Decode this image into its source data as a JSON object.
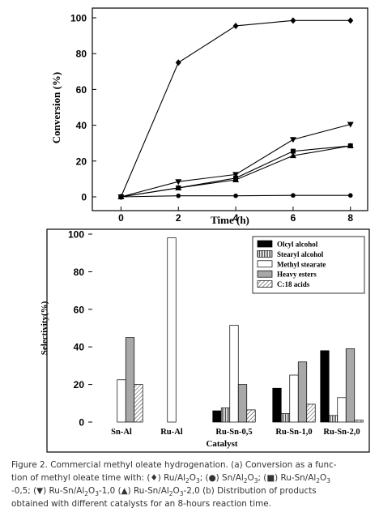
{
  "chart_data": [
    {
      "type": "line",
      "xlabel": "Time (h)",
      "ylabel": "Conversion (%)",
      "xlim": [
        -1,
        8.6
      ],
      "ylim": [
        0,
        100
      ],
      "x_ticks": [
        0,
        2,
        4,
        6,
        8
      ],
      "y_ticks": [
        0,
        20,
        40,
        60,
        80,
        100
      ],
      "x": [
        0,
        2,
        4,
        6,
        8
      ],
      "series": [
        {
          "marker": "diamond",
          "values": [
            0,
            75,
            95.5,
            98.5,
            98.5
          ]
        },
        {
          "marker": "circle",
          "values": [
            0,
            0.6,
            0.6,
            0.8,
            0.8
          ]
        },
        {
          "marker": "square",
          "values": [
            0,
            5,
            10.5,
            25.5,
            28.5
          ]
        },
        {
          "marker": "triangle-down",
          "values": [
            0,
            8.5,
            12.5,
            32,
            40.5
          ]
        },
        {
          "marker": "triangle-up",
          "values": [
            0,
            5,
            9.5,
            23,
            28.5
          ]
        }
      ]
    },
    {
      "type": "bar",
      "xlabel": "Catalyst",
      "ylabel": "Selectivity(%)",
      "ylim": [
        0,
        100
      ],
      "y_ticks": [
        0,
        20,
        40,
        60,
        80,
        100
      ],
      "categories": [
        "Sn-Al",
        "Ru-Al",
        "Ru-Sn-0,5",
        "Ru-Sn-1,0",
        "Ru-Sn-2,0"
      ],
      "legend_position": "top-right",
      "series": [
        {
          "name": "Olcyl alcohol",
          "color": "#000000",
          "pattern": "solid",
          "values": [
            0,
            0,
            6,
            18,
            38
          ]
        },
        {
          "name": "Stearyl alcohol",
          "color": "#ffffff",
          "pattern": "vertical-lines",
          "values": [
            0,
            0,
            7.5,
            4.5,
            3.5
          ]
        },
        {
          "name": "Methyl stearate",
          "color": "#ffffff",
          "pattern": "none",
          "values": [
            22.5,
            98,
            51.5,
            25,
            13
          ]
        },
        {
          "name": "Heavy esters",
          "color": "#a8a8a8",
          "pattern": "solid",
          "values": [
            45,
            0,
            20,
            32,
            39
          ]
        },
        {
          "name": "C:18 acids",
          "color": "#ffffff",
          "pattern": "diagonal-lines",
          "values": [
            20,
            0,
            6.5,
            9.5,
            1
          ]
        }
      ]
    }
  ],
  "caption": {
    "lines": [
      [
        "Figure 2. Commercial methyl oleate hydrogenation. (a) Conversion as a func-"
      ],
      [
        "tion of methyl oleate time with: (♦) Ru/Al",
        {
          "sub": "2"
        },
        "O",
        {
          "sub": "3"
        },
        "; (●) Sn/Al",
        {
          "sub": "2"
        },
        "O",
        {
          "sub": "3"
        },
        "; (■) Ru-Sn/Al",
        {
          "sub": "2"
        },
        "O",
        {
          "sub": "3"
        }
      ],
      [
        "-0,5; (▼) Ru-Sn/Al",
        {
          "sub": "2"
        },
        "O",
        {
          "sub": "3"
        },
        "-1,0 (▲) Ru-Sn/Al",
        {
          "sub": "2"
        },
        "O",
        {
          "sub": "3"
        },
        "-2,0 (b) Distribution of products"
      ],
      [
        "obtained with different catalysts for an 8-hours reaction time."
      ]
    ]
  }
}
